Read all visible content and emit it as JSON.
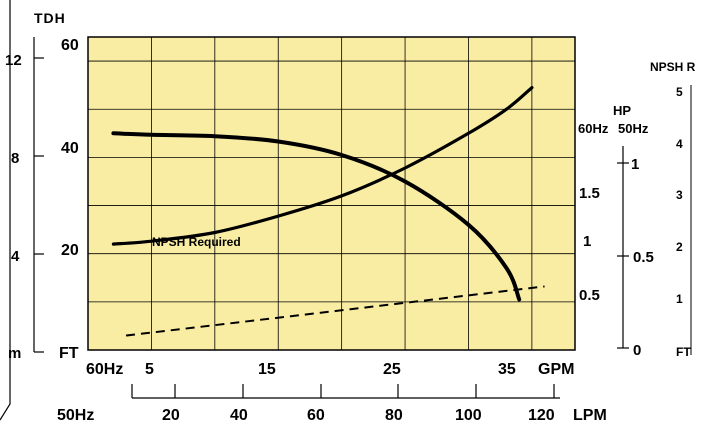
{
  "chart_data": {
    "type": "line",
    "tdh_title": "TDH",
    "tdh_m_ticks": [
      "12",
      "8",
      "4"
    ],
    "m_unit": "m",
    "tdh_ft_ticks": [
      "60",
      "40",
      "20"
    ],
    "ft_unit": "FT",
    "x_60hz_label": "60Hz",
    "x_gpm_ticks": [
      "5",
      "15",
      "25",
      "35"
    ],
    "x_gpm_unit": "GPM",
    "x_50hz_label": "50Hz",
    "x_lpm_ticks": [
      "20",
      "40",
      "60",
      "80",
      "100",
      "120"
    ],
    "x_lpm_unit": "LPM",
    "hp_title": "HP",
    "hp_60hz_label": "60Hz",
    "hp_50hz_label": "50Hz",
    "hp_60hz_ticks": [
      "1.5",
      "1",
      "0.5"
    ],
    "hp_50hz_ticks": [
      "1",
      "0.5",
      "0"
    ],
    "npsh_title": "NPSH R",
    "npsh_ticks": [
      "5",
      "4",
      "3",
      "2",
      "1"
    ],
    "npsh_unit": "FT",
    "npsh_annotation": "NPSH Required",
    "xlim_gpm": [
      0,
      38.4
    ],
    "ylim_ft": [
      0,
      65
    ],
    "series": [
      {
        "name": "",
        "values": [
          [
            2,
            45
          ],
          [
            5,
            44.7
          ],
          [
            10,
            44.4
          ],
          [
            15,
            43.3
          ],
          [
            20,
            40.5
          ],
          [
            25,
            35
          ],
          [
            30,
            26
          ],
          [
            33,
            17
          ],
          [
            34,
            10.5
          ]
        ],
        "style": "solid"
      },
      {
        "name": "",
        "values": [
          [
            2,
            22
          ],
          [
            5,
            22.6
          ],
          [
            10,
            24.4
          ],
          [
            15,
            27.8
          ],
          [
            20,
            32
          ],
          [
            25,
            37.8
          ],
          [
            30,
            45
          ],
          [
            33,
            50
          ],
          [
            35,
            54.5
          ]
        ],
        "style": "solid"
      },
      {
        "name": "",
        "values": [
          [
            3,
            3
          ],
          [
            10,
            5.2
          ],
          [
            20,
            8.2
          ],
          [
            30,
            11.4
          ],
          [
            36,
            13.2
          ]
        ],
        "style": "dashed"
      }
    ],
    "background_color": "#f9eda4",
    "line_color": "#000000",
    "grid": true
  }
}
